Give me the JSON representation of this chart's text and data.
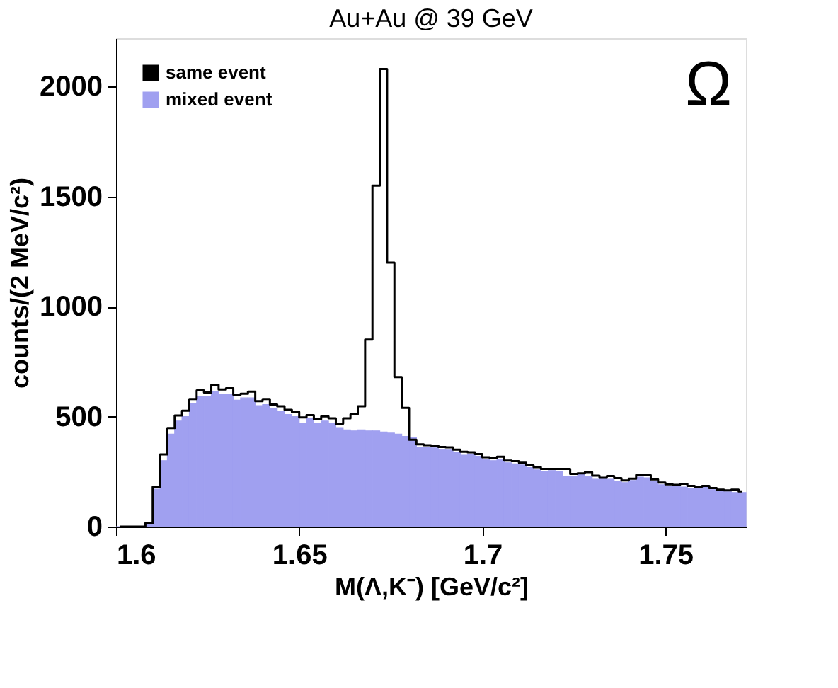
{
  "chart_data": {
    "type": "histogram",
    "title": "Au+Au @ 39 GeV",
    "xlabel": "M(Λ,K⁻)  [GeV/c²]",
    "ylabel": "counts/(2 MeV/c²)",
    "annotations": [
      "Ω"
    ],
    "bins": [
      1.6,
      1.602,
      1.604,
      1.606,
      1.608,
      1.61,
      1.612,
      1.614,
      1.616,
      1.618,
      1.62,
      1.622,
      1.624,
      1.626,
      1.628,
      1.63,
      1.632,
      1.634,
      1.636,
      1.638,
      1.64,
      1.642,
      1.644,
      1.646,
      1.648,
      1.65,
      1.652,
      1.654,
      1.656,
      1.658,
      1.66,
      1.662,
      1.664,
      1.666,
      1.668,
      1.67,
      1.672,
      1.674,
      1.676,
      1.678,
      1.68,
      1.682,
      1.684,
      1.686,
      1.688,
      1.69,
      1.692,
      1.694,
      1.696,
      1.698,
      1.7,
      1.702,
      1.704,
      1.706,
      1.708,
      1.71,
      1.712,
      1.714,
      1.716,
      1.718,
      1.72,
      1.722,
      1.724,
      1.726,
      1.728,
      1.73,
      1.732,
      1.734,
      1.736,
      1.738,
      1.74,
      1.742,
      1.744,
      1.746,
      1.748,
      1.75,
      1.752,
      1.754,
      1.756,
      1.758,
      1.76,
      1.762,
      1.764,
      1.766,
      1.768,
      1.77,
      1.772
    ],
    "series": [
      {
        "name": "same event",
        "type": "step",
        "color": "#000000",
        "x": [
          1.601,
          1.603,
          1.605,
          1.607,
          1.609,
          1.611,
          1.613,
          1.615,
          1.617,
          1.619,
          1.621,
          1.623,
          1.625,
          1.627,
          1.629,
          1.631,
          1.633,
          1.635,
          1.637,
          1.639,
          1.641,
          1.643,
          1.645,
          1.647,
          1.649,
          1.651,
          1.653,
          1.655,
          1.657,
          1.659,
          1.661,
          1.663,
          1.665,
          1.667,
          1.669,
          1.671,
          1.673,
          1.675,
          1.677,
          1.679,
          1.681,
          1.683,
          1.685,
          1.687,
          1.689,
          1.691,
          1.693,
          1.695,
          1.697,
          1.699,
          1.701,
          1.703,
          1.705,
          1.707,
          1.709,
          1.711,
          1.713,
          1.715,
          1.717,
          1.719,
          1.721,
          1.723,
          1.725,
          1.727,
          1.729,
          1.731,
          1.733,
          1.735,
          1.737,
          1.739,
          1.741,
          1.743,
          1.745,
          1.747,
          1.749,
          1.751,
          1.753,
          1.755,
          1.757,
          1.759,
          1.761,
          1.763,
          1.765,
          1.767,
          1.769,
          1.771
        ],
        "values": [
          0,
          0,
          0,
          0,
          16,
          181,
          328,
          448,
          505,
          527,
          580,
          619,
          610,
          645,
          623,
          629,
          600,
          604,
          614,
          570,
          580,
          555,
          547,
          531,
          521,
          496,
          507,
          488,
          501,
          492,
          468,
          492,
          511,
          547,
          850,
          1550,
          2080,
          1200,
          680,
          540,
          395,
          374,
          370,
          368,
          362,
          360,
          350,
          340,
          338,
          330,
          315,
          312,
          318,
          300,
          298,
          290,
          278,
          270,
          262,
          262,
          262,
          262,
          240,
          242,
          248,
          232,
          222,
          230,
          220,
          210,
          218,
          235,
          234,
          215,
          200,
          192,
          190,
          195,
          185,
          182,
          185,
          175,
          168,
          165,
          168,
          160
        ]
      },
      {
        "name": "mixed event",
        "color": "#a0a0f0",
        "values": [
          0,
          0,
          0,
          0,
          16,
          170,
          300,
          420,
          480,
          500,
          560,
          590,
          590,
          615,
          600,
          600,
          575,
          585,
          585,
          550,
          555,
          535,
          525,
          510,
          500,
          470,
          490,
          470,
          480,
          470,
          450,
          440,
          435,
          440,
          435,
          435,
          430,
          425,
          420,
          410,
          405,
          362,
          360,
          358,
          350,
          348,
          338,
          325,
          330,
          320,
          305,
          300,
          305,
          290,
          285,
          280,
          268,
          258,
          250,
          255,
          250,
          230,
          228,
          238,
          228,
          215,
          218,
          215,
          205,
          200,
          210,
          225,
          222,
          205,
          190,
          182,
          182,
          180,
          172,
          175,
          178,
          168,
          162,
          158,
          155,
          155
        ]
      }
    ],
    "xlim": [
      1.6,
      1.772
    ],
    "xticks": [
      1.6,
      1.65,
      1.7,
      1.75
    ],
    "ylim": [
      0,
      2220
    ],
    "yticks": [
      0,
      500,
      1000,
      1500,
      2000
    ],
    "grid": false,
    "legend": "top left"
  }
}
